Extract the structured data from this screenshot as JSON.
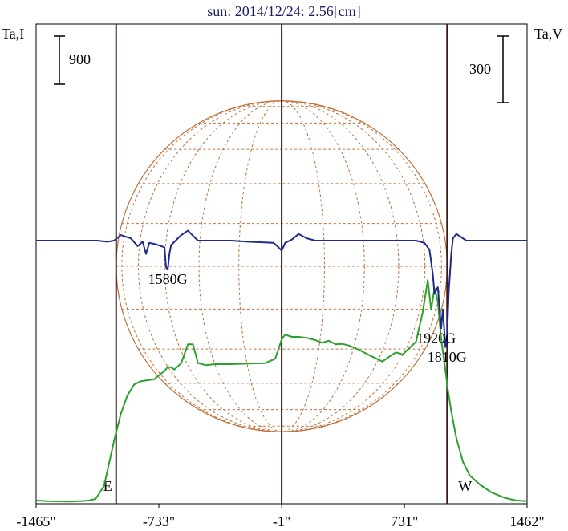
{
  "chart_data": {
    "type": "line",
    "title": "sun: 2014/12/24: 2.56[cm]",
    "left_axis_label": "Ta,I",
    "right_axis_label": "Ta,V",
    "left_scale_value": "900",
    "right_scale_value": "300",
    "x_tick_labels": [
      "-1465\"",
      "-733\"",
      "-1\"",
      "731\"",
      "1462\""
    ],
    "x_tick_values": [
      -1465,
      -733,
      -1,
      731,
      1462
    ],
    "xlim": [
      -1465,
      1462
    ],
    "limb_markers": [
      {
        "label": "E",
        "x": -988
      },
      {
        "label": "W",
        "x": 985
      }
    ],
    "center_line_x": -1,
    "annotations": [
      {
        "text": "1580G",
        "x": -680,
        "v_level": -130
      },
      {
        "text": "1920G",
        "x": 920,
        "v_level": -395
      },
      {
        "text": "1810G",
        "x": 985,
        "v_level": -480
      }
    ],
    "series": [
      {
        "name": "Ta,I",
        "color": "#2ca02c",
        "x": [
          -1465,
          -1400,
          -1330,
          -1260,
          -1160,
          -1110,
          -1060,
          -1000,
          -960,
          -920,
          -880,
          -840,
          -800,
          -760,
          -730,
          -700,
          -680,
          -660,
          -640,
          -600,
          -560,
          -530,
          -500,
          -450,
          -400,
          -300,
          -200,
          -100,
          -40,
          0,
          20,
          60,
          100,
          150,
          200,
          240,
          280,
          320,
          360,
          400,
          460,
          520,
          560,
          600,
          640,
          680,
          720,
          760,
          800,
          840,
          870,
          890,
          910,
          930,
          950,
          970,
          990,
          1010,
          1040,
          1080,
          1120,
          1180,
          1250,
          1330,
          1400,
          1462
        ],
        "y": [
          30,
          20,
          15,
          10,
          25,
          60,
          300,
          1150,
          1650,
          2000,
          2200,
          2260,
          2280,
          2300,
          2380,
          2450,
          2530,
          2520,
          2480,
          2600,
          2950,
          2950,
          2600,
          2560,
          2580,
          2580,
          2590,
          2600,
          2680,
          3050,
          3130,
          3090,
          3090,
          3070,
          3030,
          2980,
          3020,
          2950,
          2960,
          2930,
          2850,
          2750,
          2690,
          2630,
          2720,
          2800,
          2760,
          2880,
          3000,
          3550,
          4150,
          3600,
          4000,
          3750,
          3050,
          2600,
          2100,
          1700,
          1200,
          750,
          500,
          330,
          180,
          80,
          30,
          20
        ]
      },
      {
        "name": "Ta,V",
        "color": "#1f2a8a",
        "x": [
          -1465,
          -1300,
          -1100,
          -1040,
          -1000,
          -960,
          -900,
          -860,
          -830,
          -810,
          -790,
          -760,
          -700,
          -690,
          -680,
          -670,
          -660,
          -640,
          -600,
          -560,
          -520,
          -500,
          -450,
          -300,
          -200,
          -50,
          -20,
          -1,
          20,
          60,
          100,
          150,
          200,
          300,
          400,
          500,
          600,
          700,
          800,
          850,
          880,
          900,
          910,
          930,
          950,
          960,
          975,
          985,
          995,
          1010,
          1020,
          1040,
          1100,
          1200,
          1300,
          1462
        ],
        "y": [
          0,
          0,
          0,
          -5,
          0,
          25,
          10,
          -25,
          -5,
          -60,
          -10,
          -15,
          -30,
          -120,
          -130,
          -60,
          -20,
          -5,
          25,
          45,
          15,
          0,
          0,
          0,
          -5,
          -10,
          -30,
          -45,
          -10,
          5,
          30,
          10,
          0,
          0,
          0,
          0,
          0,
          0,
          0,
          -10,
          -40,
          -150,
          -240,
          -210,
          -395,
          -310,
          -480,
          -430,
          -230,
          -60,
          10,
          30,
          0,
          0,
          0,
          0
        ]
      }
    ]
  }
}
